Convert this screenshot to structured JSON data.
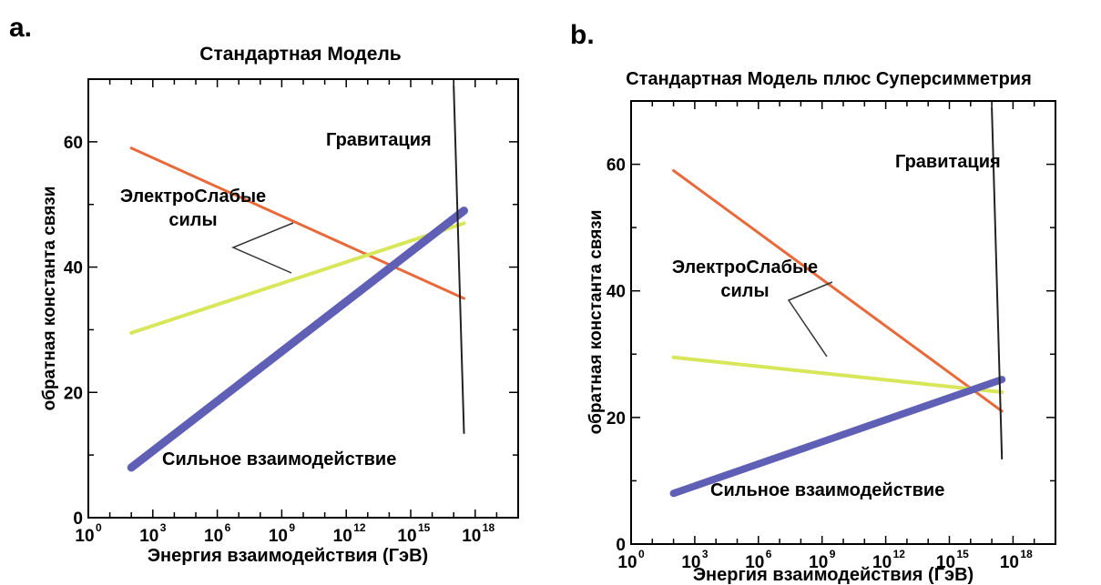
{
  "chart_data": [
    {
      "panel_label": "a.",
      "type": "line",
      "title": "Стандартная Модель",
      "xlabel": "Энергия взаимодействия (ГэВ)",
      "ylabel": "обратная константа связи",
      "x_scale": "log",
      "xlim": [
        1,
        1e+20
      ],
      "ylim": [
        0,
        70
      ],
      "x_ticks": [
        {
          "exp": 0,
          "base": "10",
          "sup": "0"
        },
        {
          "exp": 3,
          "base": "10",
          "sup": "3"
        },
        {
          "exp": 6,
          "base": "10",
          "sup": "6"
        },
        {
          "exp": 9,
          "base": "10",
          "sup": "9"
        },
        {
          "exp": 12,
          "base": "10",
          "sup": "12"
        },
        {
          "exp": 15,
          "base": "10",
          "sup": "15"
        },
        {
          "exp": 18,
          "base": "10",
          "sup": "18"
        }
      ],
      "y_ticks": [
        "0",
        "20",
        "40",
        "60"
      ],
      "y_tick_values": [
        0,
        20,
        40,
        60
      ],
      "series": [
        {
          "color": "#e8693a",
          "width": 3,
          "x": [
            100,
            3e+17
          ],
          "y": [
            59,
            35
          ]
        },
        {
          "color": "#d8e65a",
          "width": 4,
          "x": [
            100,
            3e+17
          ],
          "y": [
            29.5,
            47
          ]
        },
        {
          "color": "#5f5fb5",
          "width": 9,
          "x": [
            100,
            3e+17
          ],
          "y": [
            8,
            49
          ]
        },
        {
          "color": "#222222",
          "width": 2,
          "x": [
            1e+17,
            3e+17
          ],
          "y": [
            69,
            13.5
          ]
        }
      ],
      "annotations": {
        "gravity": "Гравитация",
        "ew_line1": "ЭлектроСлабые",
        "ew_line2": "силы",
        "strong": "Сильное взаимодействие"
      }
    },
    {
      "panel_label": "b.",
      "type": "line",
      "title": "Стандартная Модель плюс Суперсимметрия",
      "xlabel": "Энергия взаимодействия (ГэВ)",
      "ylabel": "обратная константа связи",
      "x_scale": "log",
      "xlim": [
        1,
        1e+20
      ],
      "ylim": [
        0,
        70
      ],
      "x_ticks": [
        {
          "exp": 0,
          "base": "10",
          "sup": "0"
        },
        {
          "exp": 3,
          "base": "10",
          "sup": "3"
        },
        {
          "exp": 6,
          "base": "10",
          "sup": "6"
        },
        {
          "exp": 9,
          "base": "10",
          "sup": "9"
        },
        {
          "exp": 12,
          "base": "10",
          "sup": "12"
        },
        {
          "exp": 15,
          "base": "10",
          "sup": "15"
        },
        {
          "exp": 18,
          "base": "10",
          "sup": "18"
        }
      ],
      "y_ticks": [
        "0",
        "20",
        "40",
        "60"
      ],
      "y_tick_values": [
        0,
        20,
        40,
        60
      ],
      "series": [
        {
          "color": "#e8693a",
          "width": 3,
          "x": [
            100,
            3e+17
          ],
          "y": [
            59,
            21
          ]
        },
        {
          "color": "#d8e65a",
          "width": 4,
          "x": [
            100,
            3e+17
          ],
          "y": [
            29.5,
            24
          ]
        },
        {
          "color": "#5f5fb5",
          "width": 8,
          "x": [
            100,
            3e+17
          ],
          "y": [
            8,
            26
          ]
        },
        {
          "color": "#222222",
          "width": 2,
          "x": [
            1e+17,
            3e+17
          ],
          "y": [
            69,
            13.5
          ]
        }
      ],
      "annotations": {
        "gravity": "Гравитация",
        "ew_line1": "ЭлектроСлабые",
        "ew_line2": "силы",
        "strong": "Сильное взаимодействие"
      }
    }
  ]
}
